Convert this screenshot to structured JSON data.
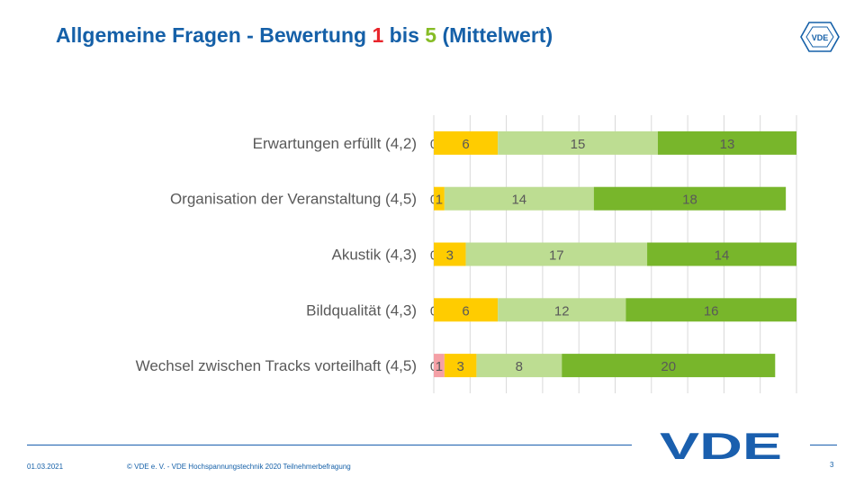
{
  "slide": {
    "title_a": "Allgemeine Fragen - Bewertung ",
    "title_one": "1",
    "title_b": " bis ",
    "title_five": "5",
    "title_c": " (Mittelwert)",
    "logo_text": "VDE",
    "small_logo_text": "VDE"
  },
  "footer": {
    "date": "01.03.2021",
    "copyright": "© VDE e. V. - VDE Hochspannungstechnik 2020 Teilnehmerbefragung",
    "page": "3"
  },
  "colors": {
    "brand_blue": "#1560a8",
    "score_1": "#e8262c",
    "score_5": "#86bc25",
    "seg_pink": "#f4a0a6",
    "seg_yellow": "#ffcc00",
    "seg_light_green": "#bddd92",
    "seg_green": "#78b62b"
  },
  "chart_data": {
    "type": "bar",
    "orientation": "horizontal",
    "stacked": true,
    "categories": [
      "Erwartungen erfüllt (4,2)",
      "Organisation der Veranstaltung (4,5)",
      "Akustik (4,3)",
      "Bildqualität (4,3)",
      "Wechsel zwischen Tracks vorteilhaft (4,5)"
    ],
    "series": [
      {
        "values": [
          0,
          0,
          0,
          0,
          0
        ],
        "color": "#f4a0a6",
        "labels": [
          "0",
          "0",
          "0",
          "0",
          "0"
        ]
      },
      {
        "values": [
          0,
          0,
          0,
          0,
          1
        ],
        "color": "#f4a0a6",
        "labels": [
          "",
          "",
          "",
          "",
          "1"
        ]
      },
      {
        "values": [
          6,
          1,
          3,
          6,
          3
        ],
        "color": "#ffcc00",
        "labels": [
          "6",
          "1",
          "3",
          "6",
          "3"
        ]
      },
      {
        "values": [
          15,
          14,
          17,
          12,
          8
        ],
        "color": "#bddd92",
        "labels": [
          "15",
          "14",
          "17",
          "12",
          "8"
        ]
      },
      {
        "values": [
          13,
          18,
          14,
          16,
          20
        ],
        "color": "#78b62b",
        "labels": [
          "13",
          "18",
          "14",
          "16",
          "20"
        ]
      }
    ],
    "grid": true,
    "legend": "none"
  }
}
